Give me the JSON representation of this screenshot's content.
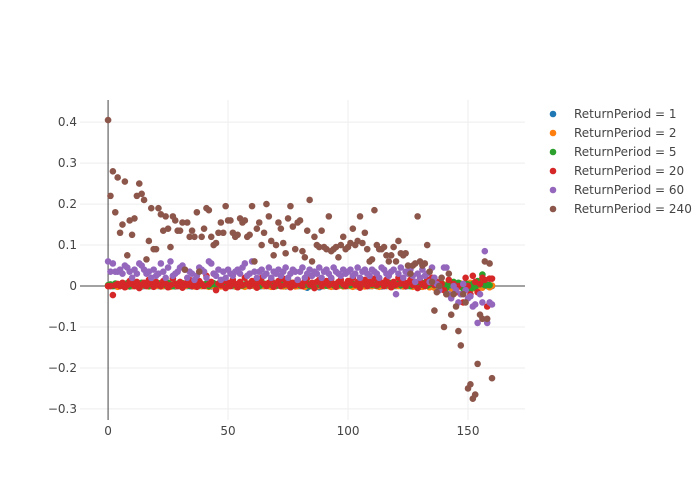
{
  "chart_data": {
    "type": "scatter",
    "title": "",
    "xlabel": "",
    "ylabel": "",
    "xlim": [
      -11.7,
      173.75
    ],
    "ylim": [
      -0.327,
      0.454
    ],
    "x_ticks": [
      0,
      50,
      100,
      150
    ],
    "x_tick_labels": [
      "0",
      "50",
      "100",
      "150"
    ],
    "y_ticks": [
      -0.3,
      -0.2,
      -0.1,
      0,
      0.1,
      0.2,
      0.3,
      0.4
    ],
    "y_tick_labels": [
      "−0.3",
      "−0.2",
      "−0.1",
      "0",
      "0.1",
      "0.2",
      "0.3",
      "0.4"
    ],
    "grid": true,
    "legend_position": "right",
    "x_start": 0,
    "series": [
      {
        "name": "ReturnPeriod = 1",
        "color": "#1f77b4",
        "values": [
          0,
          0,
          0.001,
          0,
          -0.001,
          0,
          0.001,
          0,
          0,
          -0.001,
          0,
          0.001,
          0,
          0,
          -0.001,
          0,
          0.001,
          0,
          0,
          0,
          0.001,
          0,
          -0.001,
          0,
          0,
          0.001,
          0,
          0,
          -0.001,
          0,
          0,
          0.001,
          0,
          0,
          0,
          -0.001,
          0,
          0.001,
          0,
          0,
          0.001,
          0,
          0,
          -0.001,
          0,
          0,
          0.001,
          0,
          0,
          0,
          0,
          0.001,
          0,
          -0.001,
          0,
          0,
          0.001,
          0,
          0,
          0,
          0.001,
          0,
          0,
          -0.001,
          0,
          0,
          0.001,
          0,
          0,
          0,
          0,
          0.001,
          0,
          0,
          -0.001,
          0,
          0,
          0.001,
          0,
          0,
          0,
          0.001,
          -0.002,
          -0.004,
          0,
          0,
          0.001,
          0,
          -0.003,
          0,
          0,
          0.001,
          0,
          0,
          -0.001,
          0,
          0,
          0.001,
          0,
          0,
          0,
          0.001,
          0,
          0,
          -0.001,
          0,
          0,
          0.001,
          0,
          0,
          0,
          0.001,
          0,
          0,
          -0.001,
          0,
          0,
          0.001,
          0,
          0,
          0,
          0.001,
          0,
          0,
          -0.001,
          0,
          0,
          0.001,
          0,
          0,
          -0.002,
          0.001,
          0,
          0.002,
          -0.001,
          0,
          -0.003,
          0.002,
          0,
          -0.002,
          -0.004,
          0.002,
          -0.001,
          0,
          -0.003,
          0.001,
          -0.002,
          0,
          -0.004,
          0.002,
          0,
          -0.003,
          0.001,
          0,
          -0.002,
          0.003,
          -0.001,
          0.002,
          0,
          0,
          0
        ]
      },
      {
        "name": "ReturnPeriod = 2",
        "color": "#ff7f0e",
        "values": [
          0,
          0.001,
          0,
          0.002,
          -0.002,
          0,
          0.001,
          0,
          -0.001,
          0.002,
          0,
          0,
          0.001,
          -0.002,
          0,
          0.002,
          0,
          -0.001,
          0.001,
          0,
          0,
          0.002,
          -0.001,
          0,
          0.001,
          0,
          -0.002,
          0.001,
          0,
          0.002,
          0,
          -0.001,
          0,
          0.001,
          0.002,
          0,
          -0.001,
          0,
          0.001,
          0,
          0.002,
          0,
          -0.002,
          0.001,
          0,
          0,
          0.002,
          -0.001,
          0,
          0.001,
          0,
          0,
          0.002,
          -0.001,
          0,
          0.001,
          0,
          -0.002,
          0.001,
          0,
          0.002,
          0,
          -0.001,
          0,
          0.001,
          0,
          0.002,
          0,
          -0.002,
          0.001,
          0,
          0.002,
          0,
          -0.001,
          0,
          0.001,
          0,
          0.002,
          -0.001,
          0,
          0.001,
          0,
          -0.002,
          0.001,
          0,
          0.002,
          0,
          -0.001,
          0,
          0.001,
          0,
          0.002,
          0,
          -0.002,
          0.001,
          0,
          0,
          0.002,
          -0.001,
          0,
          0.001,
          0,
          -0.002,
          0.001,
          0,
          0.002,
          0,
          -0.001,
          0,
          0.001,
          0,
          0.002,
          0,
          -0.002,
          0.001,
          0,
          0.002,
          0,
          -0.001,
          0,
          0.001,
          0,
          0.002,
          -0.001,
          0,
          0.001,
          0,
          -0.002,
          0.001,
          0,
          0.003,
          -0.002,
          0,
          0.004,
          -0.003,
          0.002,
          -0.004,
          0.001,
          0.003,
          -0.005,
          0.004,
          -0.002,
          0.005,
          -0.006,
          0.002,
          0.004,
          -0.003,
          0.006,
          -0.004,
          0.003,
          -0.005,
          0.008,
          -0.006,
          0.004,
          -0.01,
          0.006,
          -0.004,
          0.005,
          0.002,
          -0.003,
          0.001
        ]
      },
      {
        "name": "ReturnPeriod = 5",
        "color": "#2ca02c",
        "values": [
          0.002,
          0.004,
          0,
          0.006,
          0.003,
          0.001,
          0.005,
          0.002,
          0.007,
          0,
          0.003,
          0.006,
          0.001,
          0.004,
          0.008,
          0.002,
          0.005,
          0,
          0.006,
          0.003,
          0.004,
          0.007,
          0.001,
          0.005,
          0.002,
          0.008,
          0.003,
          0,
          0.006,
          0.004,
          0.002,
          0.007,
          0.003,
          0.005,
          0.001,
          0.006,
          0.004,
          0.008,
          0.002,
          0.005,
          0.003,
          0.006,
          0,
          0.004,
          0.007,
          0.002,
          0.005,
          0.003,
          0.008,
          0.001,
          0.004,
          0.006,
          0.002,
          0.005,
          0.003,
          0.007,
          0.001,
          0.004,
          0.006,
          0.002,
          0.005,
          0.003,
          0.008,
          0,
          0.004,
          0.006,
          0.002,
          0.005,
          0.003,
          0.007,
          0.001,
          0.004,
          0.006,
          0.002,
          0.005,
          0.003,
          0.008,
          0.001,
          0.004,
          0.006,
          0.002,
          0.005,
          0.003,
          0.007,
          0,
          0.004,
          0.006,
          0.002,
          0.005,
          0.003,
          0.008,
          0.001,
          0.004,
          0.006,
          0.002,
          0.005,
          0.003,
          0.007,
          0.001,
          0.004,
          0.006,
          0.002,
          0.005,
          0.003,
          0.008,
          0,
          0.004,
          0.006,
          0.002,
          0.005,
          0.003,
          0.007,
          0.001,
          0.004,
          0.006,
          0.002,
          0.005,
          0.003,
          0.008,
          0.001,
          0.004,
          0.006,
          0.002,
          0.005,
          0.003,
          0.007,
          0,
          0.004,
          0.006,
          0.002,
          0.005,
          0.003,
          0.008,
          0.001,
          0.004,
          0.006,
          0.002,
          0.005,
          -0.004,
          0.007,
          0.001,
          -0.005,
          0.006,
          0.002,
          0.01,
          -0.003,
          0.008,
          0.001,
          -0.006,
          0.006,
          0.004,
          -0.008,
          0.005,
          -0.004,
          0.012,
          0.004,
          0.028,
          0.002,
          0.003,
          0.002
        ]
      },
      {
        "name": "ReturnPeriod = 20",
        "color": "#d62728",
        "values": [
          0,
          0,
          -0.022,
          0.002,
          0.005,
          0,
          0.008,
          -0.003,
          0.002,
          0.012,
          0.005,
          0,
          0.01,
          -0.005,
          0.003,
          0.008,
          0,
          0.015,
          0.005,
          -0.002,
          0.01,
          0.003,
          0,
          0.012,
          0.006,
          -0.003,
          0.002,
          0.018,
          0.005,
          0,
          0.01,
          -0.004,
          0.006,
          0.003,
          0.015,
          0,
          0.008,
          -0.002,
          0.012,
          0.005,
          0,
          0.025,
          0.004,
          0.01,
          0.03,
          -0.01,
          0.006,
          0.002,
          0.012,
          -0.005,
          0.008,
          0,
          0.015,
          0.005,
          -0.003,
          0.01,
          0.002,
          0.02,
          0.006,
          0,
          0.012,
          0.004,
          -0.004,
          0.01,
          0.02,
          0.005,
          0,
          0.008,
          0.015,
          -0.002,
          0.006,
          0.012,
          0,
          0.018,
          0.004,
          0.01,
          -0.003,
          0.008,
          0.002,
          0.015,
          0.005,
          0,
          0.012,
          0.02,
          0.003,
          0.008,
          -0.005,
          0.01,
          0.015,
          0,
          0.006,
          0.012,
          0.002,
          0.018,
          0.005,
          -0.002,
          0.01,
          0.015,
          0.004,
          0,
          0.012,
          0.008,
          0.02,
          0.003,
          0.01,
          -0.004,
          0.006,
          0.015,
          0,
          0.01,
          0.005,
          0.018,
          0.002,
          0.012,
          0.008,
          0,
          0.015,
          0.005,
          -0.003,
          0.01,
          0.003,
          0.02,
          0.006,
          0.012,
          0,
          0.008,
          0.015,
          0.002,
          0.01,
          -0.005,
          0.012,
          0.005,
          0,
          0.015,
          0.008,
          0.02,
          0.003,
          0.01,
          -0.01,
          0.005,
          -0.01,
          -0.02,
          0.015,
          -0.025,
          0.005,
          -0.015,
          0,
          -0.02,
          -0.04,
          0.02,
          0,
          -0.02,
          0.025,
          0.01,
          -0.015,
          0.005,
          0.02,
          0.015,
          -0.05,
          0.018,
          0.018
        ]
      },
      {
        "name": "ReturnPeriod = 60",
        "color": "#9467bd",
        "values": [
          0.06,
          0.035,
          0.055,
          0.035,
          0.035,
          0.04,
          0.03,
          0.05,
          0.045,
          0.035,
          0.02,
          0.04,
          0.03,
          0.055,
          0.05,
          0.04,
          0.03,
          0.035,
          0.02,
          0.04,
          0.025,
          0.03,
          0.055,
          0.035,
          0.02,
          0.045,
          0.06,
          0.025,
          0.03,
          0.035,
          0.045,
          0.05,
          0.04,
          0.02,
          0.035,
          0.03,
          0.015,
          0.025,
          0.045,
          0.04,
          0.035,
          0.02,
          0.06,
          0.055,
          0.03,
          0.025,
          0.04,
          0.015,
          0.035,
          0.02,
          0.04,
          0.03,
          0.025,
          0.035,
          0.04,
          0.03,
          0.045,
          0.055,
          0.025,
          0.03,
          0.06,
          0.035,
          0.02,
          0.035,
          0.04,
          0.025,
          0.03,
          0.045,
          0.02,
          0.035,
          0.03,
          0.04,
          0.025,
          0.035,
          0.045,
          0.02,
          0.03,
          0.04,
          0.035,
          0.015,
          0.035,
          0.045,
          0.02,
          0.03,
          0.04,
          0.025,
          0.035,
          0.03,
          0.045,
          0.02,
          0.035,
          0.04,
          0.03,
          0.02,
          0.045,
          0.035,
          0.03,
          0.025,
          0.04,
          0.03,
          0.035,
          0.04,
          0.025,
          0.03,
          0.045,
          0.02,
          0.035,
          0.04,
          0.03,
          0.025,
          0.04,
          0.035,
          0.03,
          0.02,
          0.045,
          0.04,
          0.03,
          0.025,
          0.035,
          0.04,
          -0.02,
          0.03,
          0.045,
          0.02,
          0.035,
          0.03,
          0.04,
          0.025,
          0.01,
          0.03,
          0.02,
          0.04,
          0.025,
          0.03,
          0.01,
          0.045,
          0.02,
          0.005,
          -0.01,
          0.02,
          0.045,
          0.045,
          -0.02,
          -0.03,
          0,
          -0.01,
          -0.04,
          -0.02,
          0.005,
          -0.01,
          -0.03,
          -0.025,
          -0.05,
          -0.045,
          -0.09,
          -0.02,
          -0.04,
          0.085,
          -0.09,
          -0.04,
          -0.045
        ]
      },
      {
        "name": "ReturnPeriod = 240",
        "color": "#8c564b",
        "values": [
          0.405,
          0.22,
          0.28,
          0.18,
          0.265,
          0.13,
          0.15,
          0.255,
          0.075,
          0.16,
          0.125,
          0.165,
          0.22,
          0.25,
          0.225,
          0.21,
          0.065,
          0.11,
          0.19,
          0.09,
          0.09,
          0.19,
          0.175,
          0.135,
          0.17,
          0.14,
          0.095,
          0.17,
          0.16,
          0.135,
          0.135,
          0.155,
          0.04,
          0.155,
          0.12,
          0.135,
          0.12,
          0.18,
          0.035,
          0.12,
          0.14,
          0.19,
          0.185,
          0.12,
          0.1,
          0.105,
          0.13,
          0.155,
          0.13,
          0.195,
          0.16,
          0.16,
          0.13,
          0.12,
          0.125,
          0.165,
          0.155,
          0.16,
          0.12,
          0.125,
          0.195,
          0.06,
          0.14,
          0.155,
          0.1,
          0.13,
          0.2,
          0.17,
          0.11,
          0.075,
          0.1,
          0.155,
          0.14,
          0.105,
          0.08,
          0.165,
          0.195,
          0.145,
          0.09,
          0.155,
          0.16,
          0.085,
          0.07,
          0.135,
          0.21,
          0.06,
          0.12,
          0.1,
          0.095,
          0.135,
          0.095,
          0.09,
          0.17,
          0.085,
          0.09,
          0.095,
          0.07,
          0.1,
          0.12,
          0.09,
          0.095,
          0.105,
          0.14,
          0.1,
          0.11,
          0.17,
          0.105,
          0.13,
          0.09,
          0.06,
          0.065,
          0.185,
          0.1,
          0.09,
          0.09,
          0.095,
          0.075,
          0.06,
          0.075,
          0.095,
          0.06,
          0.11,
          0.08,
          0.075,
          0.08,
          0.05,
          0.03,
          0.05,
          0.055,
          0.17,
          0.06,
          0.05,
          0.055,
          0.1,
          0.035,
          0.01,
          -0.06,
          -0.015,
          0,
          0.02,
          -0.1,
          -0.02,
          0.03,
          -0.07,
          -0.02,
          -0.05,
          -0.11,
          -0.145,
          -0.02,
          -0.04,
          -0.25,
          -0.24,
          -0.275,
          -0.265,
          -0.19,
          -0.07,
          -0.08,
          0.06,
          -0.08,
          0.055,
          -0.225
        ]
      }
    ]
  }
}
